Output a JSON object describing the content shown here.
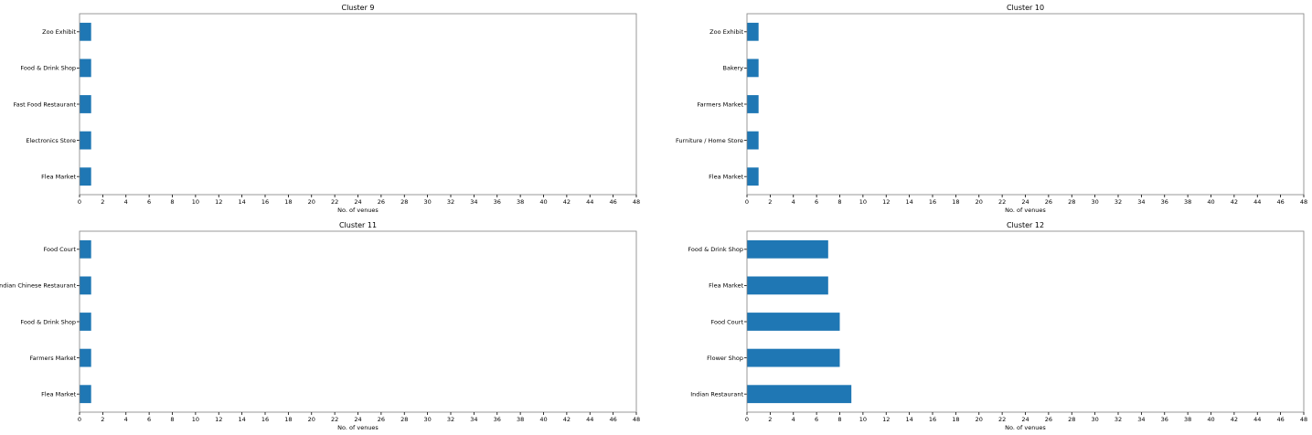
{
  "colors": {
    "bar": "#1f77b4",
    "background": "#ffffff"
  },
  "chart_data": [
    {
      "type": "bar",
      "orientation": "horizontal",
      "title": "Cluster 9",
      "xlabel": "No. of venues",
      "ylabel": "",
      "xlim": [
        0,
        48
      ],
      "xticks": [
        0,
        2,
        4,
        6,
        8,
        10,
        12,
        14,
        16,
        18,
        20,
        22,
        24,
        26,
        28,
        30,
        32,
        34,
        36,
        38,
        40,
        42,
        44,
        46,
        48
      ],
      "categories": [
        "Zoo Exhibit",
        "Food & Drink Shop",
        "Fast Food Restaurant",
        "Electronics Store",
        "Flea Market"
      ],
      "values": [
        1,
        1,
        1,
        1,
        1
      ],
      "grid": false
    },
    {
      "type": "bar",
      "orientation": "horizontal",
      "title": "Cluster 10",
      "xlabel": "No. of venues",
      "ylabel": "",
      "xlim": [
        0,
        48
      ],
      "xticks": [
        0,
        2,
        4,
        6,
        8,
        10,
        12,
        14,
        16,
        18,
        20,
        22,
        24,
        26,
        28,
        30,
        32,
        34,
        36,
        38,
        40,
        42,
        44,
        46,
        48
      ],
      "categories": [
        "Zoo Exhibit",
        "Bakery",
        "Farmers Market",
        "Furniture / Home Store",
        "Flea Market"
      ],
      "values": [
        1,
        1,
        1,
        1,
        1
      ],
      "grid": false
    },
    {
      "type": "bar",
      "orientation": "horizontal",
      "title": "Cluster 11",
      "xlabel": "No. of venues",
      "ylabel": "",
      "xlim": [
        0,
        48
      ],
      "xticks": [
        0,
        2,
        4,
        6,
        8,
        10,
        12,
        14,
        16,
        18,
        20,
        22,
        24,
        26,
        28,
        30,
        32,
        34,
        36,
        38,
        40,
        42,
        44,
        46,
        48
      ],
      "categories": [
        "Food Court",
        "Indian Chinese Restaurant",
        "Food & Drink Shop",
        "Farmers Market",
        "Flea Market"
      ],
      "values": [
        1,
        1,
        1,
        1,
        1
      ],
      "grid": false
    },
    {
      "type": "bar",
      "orientation": "horizontal",
      "title": "Cluster 12",
      "xlabel": "No. of venues",
      "ylabel": "",
      "xlim": [
        0,
        48
      ],
      "xticks": [
        0,
        2,
        4,
        6,
        8,
        10,
        12,
        14,
        16,
        18,
        20,
        22,
        24,
        26,
        28,
        30,
        32,
        34,
        36,
        38,
        40,
        42,
        44,
        46,
        48
      ],
      "categories": [
        "Food & Drink Shop",
        "Flea Market",
        "Food Court",
        "Flower Shop",
        "Indian Restaurant"
      ],
      "values": [
        7,
        7,
        8,
        8,
        9
      ],
      "grid": false
    }
  ]
}
